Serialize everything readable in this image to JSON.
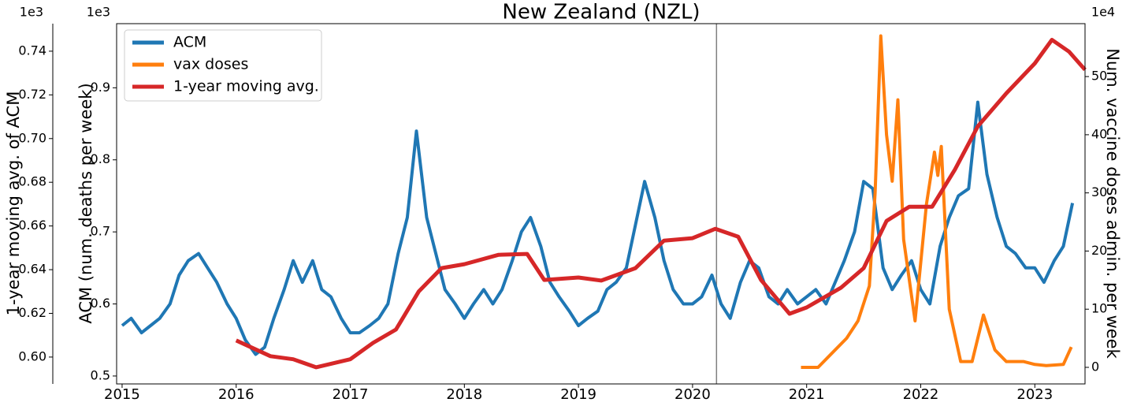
{
  "chart_data": {
    "type": "line",
    "title": "New Zealand (NZL)",
    "ylabel": "ACM (num. deaths per week)",
    "y2label": "Num. vaccine doses admin. per week",
    "y3label": "1-year moving avg. of ACM",
    "yoffset": "1e3",
    "y2offset": "1e4",
    "y3offset": "1e3",
    "legend": "upper left",
    "vline": 2020.21,
    "xlim": [
      2014.952,
      2023.44
    ],
    "xticks": [
      2015,
      2016,
      2017,
      2018,
      2019,
      2020,
      2021,
      2022,
      2023
    ],
    "ylim": [
      0.489,
      0.989
    ],
    "yticks": [
      0.5,
      0.6,
      0.7,
      0.8,
      0.9
    ],
    "y2lim": [
      -2.85,
      59.1
    ],
    "y2ticks": [
      0,
      10,
      20,
      30,
      40,
      50
    ],
    "y3lim": [
      0.5877,
      0.7526
    ],
    "y3ticks": [
      {
        "value": 0.6,
        "label": "0.60"
      },
      0.62,
      0.64,
      0.66,
      0.68,
      {
        "value": 0.7,
        "label": "0.70"
      },
      0.72,
      0.74
    ],
    "series": [
      {
        "name": "ACM",
        "color": "#1f77b4",
        "axis": "y",
        "x": [
          2015,
          2015.08,
          2015.17,
          2015.25,
          2015.33,
          2015.42,
          2015.5,
          2015.58,
          2015.67,
          2015.75,
          2015.83,
          2015.92,
          2016,
          2016.08,
          2016.17,
          2016.25,
          2016.33,
          2016.42,
          2016.5,
          2016.58,
          2016.67,
          2016.75,
          2016.83,
          2016.92,
          2017,
          2017.08,
          2017.17,
          2017.25,
          2017.33,
          2017.42,
          2017.5,
          2017.58,
          2017.67,
          2017.75,
          2017.83,
          2017.92,
          2018,
          2018.08,
          2018.17,
          2018.25,
          2018.33,
          2018.42,
          2018.5,
          2018.58,
          2018.67,
          2018.75,
          2018.83,
          2018.92,
          2019,
          2019.08,
          2019.17,
          2019.25,
          2019.33,
          2019.42,
          2019.5,
          2019.58,
          2019.67,
          2019.75,
          2019.83,
          2019.92,
          2020,
          2020.08,
          2020.17,
          2020.25,
          2020.33,
          2020.42,
          2020.5,
          2020.58,
          2020.67,
          2020.75,
          2020.83,
          2020.92,
          2021,
          2021.08,
          2021.17,
          2021.25,
          2021.33,
          2021.42,
          2021.5,
          2021.58,
          2021.67,
          2021.75,
          2021.83,
          2021.92,
          2022,
          2022.08,
          2022.17,
          2022.25,
          2022.33,
          2022.42,
          2022.5,
          2022.58,
          2022.67,
          2022.75,
          2022.83,
          2022.92,
          2023,
          2023.08,
          2023.17,
          2023.25,
          2023.33
        ],
        "values": [
          0.57,
          0.58,
          0.56,
          0.57,
          0.58,
          0.6,
          0.64,
          0.66,
          0.67,
          0.65,
          0.63,
          0.6,
          0.58,
          0.55,
          0.53,
          0.54,
          0.58,
          0.62,
          0.66,
          0.63,
          0.66,
          0.62,
          0.61,
          0.58,
          0.56,
          0.56,
          0.57,
          0.58,
          0.6,
          0.67,
          0.72,
          0.84,
          0.72,
          0.67,
          0.62,
          0.6,
          0.58,
          0.6,
          0.62,
          0.6,
          0.62,
          0.66,
          0.7,
          0.72,
          0.68,
          0.63,
          0.61,
          0.59,
          0.57,
          0.58,
          0.59,
          0.62,
          0.63,
          0.65,
          0.71,
          0.77,
          0.72,
          0.66,
          0.62,
          0.6,
          0.6,
          0.61,
          0.64,
          0.6,
          0.58,
          0.63,
          0.66,
          0.65,
          0.61,
          0.6,
          0.62,
          0.6,
          0.61,
          0.62,
          0.6,
          0.63,
          0.66,
          0.7,
          0.77,
          0.76,
          0.65,
          0.62,
          0.64,
          0.66,
          0.62,
          0.6,
          0.68,
          0.72,
          0.75,
          0.76,
          0.88,
          0.78,
          0.72,
          0.68,
          0.67,
          0.65,
          0.65,
          0.63,
          0.66,
          0.68,
          0.74
        ]
      },
      {
        "name": "vax doses",
        "color": "#ff7f0e",
        "axis": "y2",
        "x": [
          2020.95,
          2021.1,
          2021.2,
          2021.35,
          2021.45,
          2021.55,
          2021.6,
          2021.65,
          2021.7,
          2021.75,
          2021.8,
          2021.85,
          2021.95,
          2022.05,
          2022.12,
          2022.15,
          2022.18,
          2022.25,
          2022.35,
          2022.45,
          2022.55,
          2022.65,
          2022.75,
          2022.9,
          2023,
          2023.1,
          2023.25,
          2023.32
        ],
        "values": [
          0,
          0,
          2,
          5,
          8,
          14,
          30,
          57,
          40,
          32,
          46,
          22,
          8,
          28,
          37,
          33,
          38,
          10,
          1,
          1,
          9,
          3,
          1,
          1,
          0.5,
          0.3,
          0.5,
          3.5
        ]
      },
      {
        "name": "1-year moving avg.",
        "color": "#d62728",
        "axis": "y3",
        "x": [
          2016,
          2016.3,
          2016.5,
          2016.7,
          2017,
          2017.2,
          2017.4,
          2017.6,
          2017.8,
          2018,
          2018.3,
          2018.55,
          2018.7,
          2019,
          2019.2,
          2019.5,
          2019.75,
          2020,
          2020.2,
          2020.4,
          2020.6,
          2020.85,
          2021,
          2021.3,
          2021.5,
          2021.7,
          2021.9,
          2022.1,
          2022.3,
          2022.5,
          2022.75,
          2023,
          2023.15,
          2023.3,
          2023.44
        ],
        "values": [
          0.6076,
          0.6004,
          0.599,
          0.5953,
          0.599,
          0.6065,
          0.6126,
          0.63,
          0.6407,
          0.6425,
          0.6468,
          0.6472,
          0.6353,
          0.6364,
          0.635,
          0.6407,
          0.6533,
          0.6544,
          0.6587,
          0.6551,
          0.6353,
          0.6198,
          0.6227,
          0.6317,
          0.6407,
          0.6623,
          0.6688,
          0.6688,
          0.6858,
          0.7056,
          0.7207,
          0.7344,
          0.7452,
          0.7398,
          0.7315
        ]
      }
    ]
  }
}
